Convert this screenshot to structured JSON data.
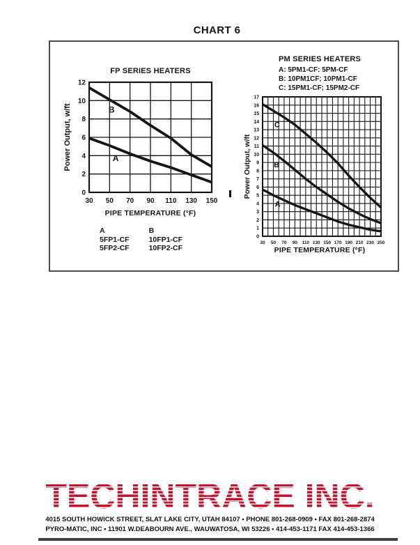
{
  "page_title": "CHART 6",
  "colors": {
    "ink": "#141414",
    "frame_border": "#4b4b4b",
    "logo_red": "#c4122f"
  },
  "fp_chart_legend": {
    "columns": [
      {
        "header": "A",
        "items": [
          "5FP1-CF",
          "5FP2-CF"
        ]
      },
      {
        "header": "B",
        "items": [
          "10FP1-CF",
          "10FP2-CF"
        ]
      }
    ]
  },
  "pm_chart_legend": {
    "lines": [
      "A: 5PM1-CF: 5PM-CF",
      "B: 10PM1CF; 10PM1-CF",
      "C: 15PM1-CF; 15PM2-CF"
    ]
  },
  "chart_data": [
    {
      "id": "fp",
      "type": "line",
      "title": "FP SERIES HEATERS",
      "xlabel": "PIPE TEMPERATURE (°F)",
      "ylabel": "Power Output, w/ft",
      "xlim": [
        30,
        150
      ],
      "ylim": [
        0,
        12
      ],
      "x_grid_step": 20,
      "y_grid_step": 2,
      "x_ticks": [
        30,
        50,
        70,
        90,
        110,
        130,
        150
      ],
      "y_ticks": [
        0,
        2,
        4,
        6,
        8,
        10,
        12
      ],
      "grid": true,
      "legend_position": "below",
      "x": [
        30,
        50,
        70,
        90,
        110,
        130,
        150
      ],
      "series": [
        {
          "name": "B",
          "values": [
            11.4,
            10.1,
            8.8,
            7.3,
            5.9,
            4.1,
            2.8
          ],
          "label_at": [
            52,
            8.7
          ]
        },
        {
          "name": "A",
          "values": [
            5.9,
            5.1,
            4.2,
            3.4,
            2.7,
            1.9,
            1.1
          ],
          "label_at": [
            56,
            3.4
          ]
        }
      ]
    },
    {
      "id": "pm",
      "type": "line",
      "title": "PM SERIES HEATERS",
      "xlabel": "PIPE TEMPERATURE (°F)",
      "ylabel": "Power Output, w/ft",
      "xlim": [
        30,
        250
      ],
      "ylim": [
        0,
        17
      ],
      "x_grid_step": 10,
      "y_grid_step": 1,
      "x_ticks": [
        30,
        50,
        70,
        90,
        110,
        130,
        150,
        170,
        190,
        210,
        230,
        250
      ],
      "y_ticks": [
        0,
        1,
        2,
        3,
        4,
        5,
        6,
        7,
        8,
        9,
        10,
        11,
        12,
        13,
        14,
        15,
        16,
        17
      ],
      "grid": true,
      "legend_position": "above",
      "x": [
        30,
        50,
        70,
        90,
        110,
        130,
        150,
        170,
        190,
        210,
        230,
        250
      ],
      "series": [
        {
          "name": "C",
          "values": [
            16.1,
            15.3,
            14.5,
            13.6,
            12.5,
            11.4,
            10.2,
            8.9,
            7.4,
            6.0,
            4.7,
            3.5
          ],
          "label_at": [
            57,
            13.3
          ]
        },
        {
          "name": "B",
          "values": [
            11.1,
            10.2,
            9.2,
            8.1,
            7.0,
            6.0,
            5.1,
            4.2,
            3.4,
            2.7,
            2.1,
            1.6
          ],
          "label_at": [
            56,
            8.4
          ]
        },
        {
          "name": "A",
          "values": [
            5.7,
            5.0,
            4.4,
            3.8,
            3.3,
            2.8,
            2.3,
            1.8,
            1.4,
            1.1,
            0.8,
            0.6
          ],
          "label_at": [
            58,
            3.6
          ]
        }
      ]
    }
  ],
  "footer": {
    "logo_text": "TECHINTRACE INC.",
    "address_line1": "4015 SOUTH HOWICK STREET, SLAT LAKE CITY, UTAH 84107 • PHONE 801-268-0909 • FAX 801-268-2874",
    "address_line2": "PYRO-MATIC, INC • 11901 W.DEABOURN AVE., WAUWATOSA, WI 53226 • 414-453-1171 FAX 414-453-1366"
  }
}
